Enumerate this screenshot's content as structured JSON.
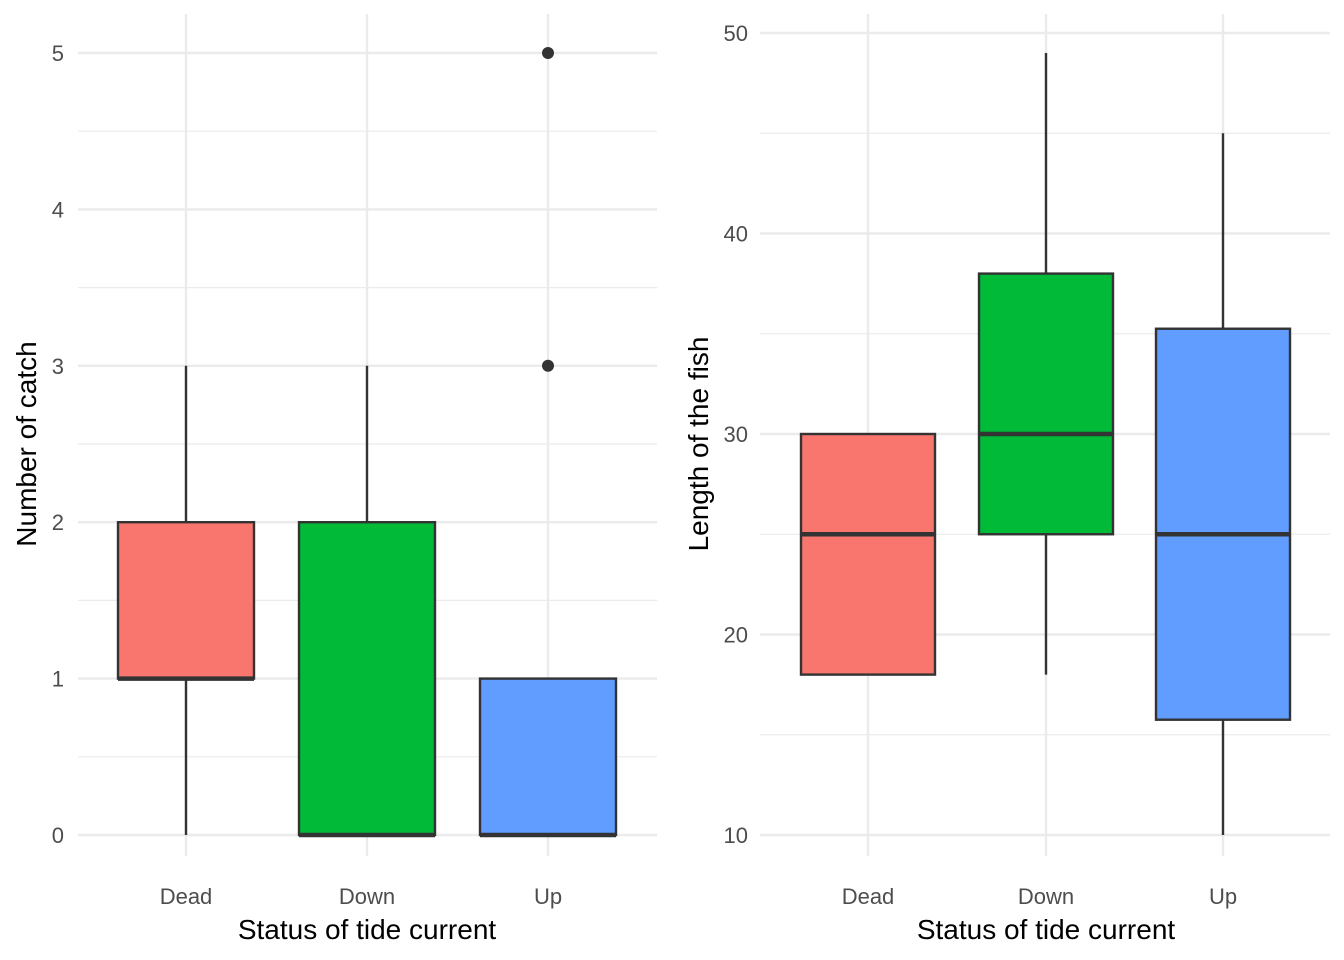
{
  "chart_data": [
    {
      "type": "box",
      "xlabel": "Status of tide current",
      "ylabel": "Number of catch",
      "categories": [
        "Dead",
        "Down",
        "Up"
      ],
      "ylim": [
        -0.25,
        5.25
      ],
      "yticks": [
        0,
        1,
        2,
        3,
        4,
        5
      ],
      "grid": true,
      "legend": "none",
      "boxes": [
        {
          "category": "Dead",
          "lower_whisker": 0,
          "q1": 1,
          "median": 1,
          "q3": 2,
          "upper_whisker": 3,
          "outliers": [],
          "color": "#F8766D"
        },
        {
          "category": "Down",
          "lower_whisker": 0,
          "q1": 0,
          "median": 0,
          "q3": 2,
          "upper_whisker": 3,
          "outliers": [],
          "color": "#00BA38"
        },
        {
          "category": "Up",
          "lower_whisker": 0,
          "q1": 0,
          "median": 0,
          "q3": 1,
          "upper_whisker": 1,
          "outliers": [
            3,
            5
          ],
          "color": "#619CFF"
        }
      ]
    },
    {
      "type": "box",
      "xlabel": "Status of tide current",
      "ylabel": "Length of the fish",
      "categories": [
        "Dead",
        "Down",
        "Up"
      ],
      "ylim": [
        8,
        51
      ],
      "yticks": [
        10,
        20,
        30,
        40,
        50
      ],
      "minor_yticks": [
        15,
        25,
        35,
        45
      ],
      "grid": true,
      "legend": "none",
      "boxes": [
        {
          "category": "Dead",
          "lower_whisker": 18,
          "q1": 18,
          "median": 25,
          "q3": 30,
          "upper_whisker": 30,
          "outliers": [],
          "color": "#F8766D"
        },
        {
          "category": "Down",
          "lower_whisker": 18,
          "q1": 25,
          "median": 30,
          "q3": 38,
          "upper_whisker": 49,
          "outliers": [],
          "color": "#00BA38"
        },
        {
          "category": "Up",
          "lower_whisker": 10,
          "q1": 15.75,
          "median": 25,
          "q3": 35.25,
          "upper_whisker": 45,
          "outliers": [],
          "color": "#619CFF"
        }
      ]
    }
  ]
}
